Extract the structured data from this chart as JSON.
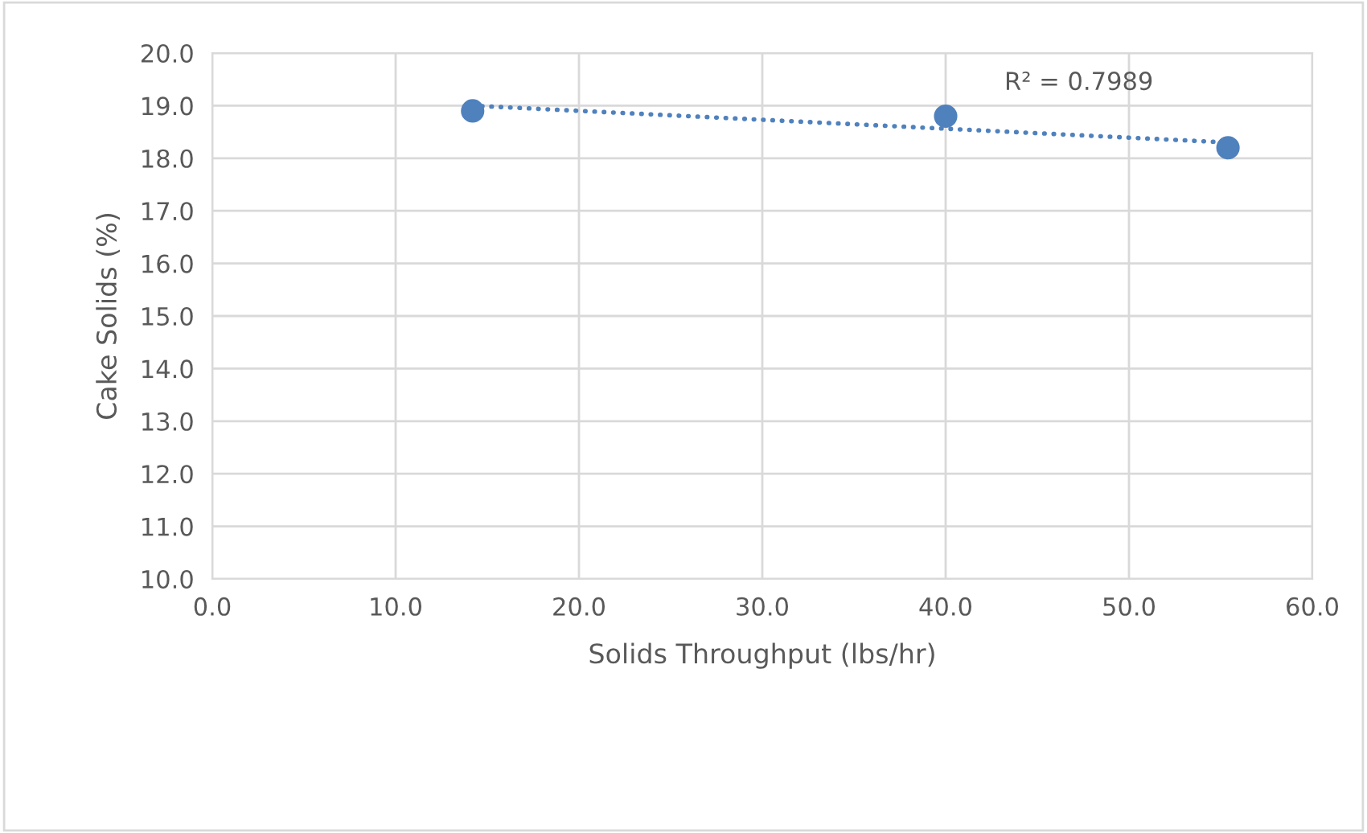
{
  "chart_data": {
    "type": "scatter",
    "xlabel": "Solids Throughput (lbs/hr)",
    "ylabel": "Cake Solids (%)",
    "x": [
      14.2,
      40.0,
      55.4
    ],
    "series": [
      {
        "color": "#4f81bd",
        "values": [
          18.9,
          18.8,
          18.2
        ],
        "marker": "circle"
      },
      {
        "type": "line",
        "color": "#4f81bd",
        "x": [
          14.2,
          55.4
        ],
        "values": [
          19.0,
          18.3
        ],
        "line_style": "dotted",
        "marker": "none"
      }
    ],
    "annotations": [
      "R² = 0.7989"
    ],
    "xlim": [
      0,
      60
    ],
    "xticks": [
      {
        "value": 0,
        "label": "0.0"
      },
      {
        "value": 10,
        "label": "10.0"
      },
      {
        "value": 20,
        "label": "20.0"
      },
      {
        "value": 30,
        "label": "30.0"
      },
      {
        "value": 40,
        "label": "40.0"
      },
      {
        "value": 50,
        "label": "50.0"
      },
      {
        "value": 60,
        "label": "60.0"
      }
    ],
    "ylim": [
      10,
      20
    ],
    "yticks": [
      {
        "value": 10,
        "label": "10.0"
      },
      {
        "value": 11,
        "label": "11.0"
      },
      {
        "value": 12,
        "label": "12.0"
      },
      {
        "value": 13,
        "label": "13.0"
      },
      {
        "value": 14,
        "label": "14.0"
      },
      {
        "value": 15,
        "label": "15.0"
      },
      {
        "value": 16,
        "label": "16.0"
      },
      {
        "value": 17,
        "label": "17.0"
      },
      {
        "value": 18,
        "label": "18.0"
      },
      {
        "value": 19,
        "label": "19.0"
      },
      {
        "value": 20,
        "label": "20.0"
      }
    ],
    "grid": true
  }
}
